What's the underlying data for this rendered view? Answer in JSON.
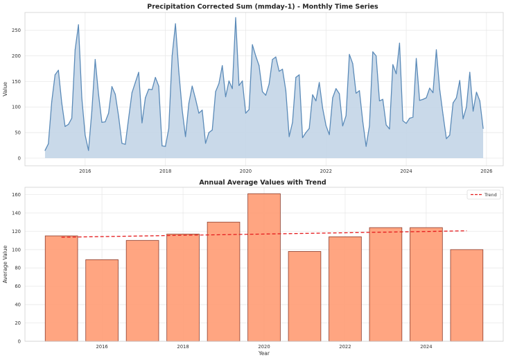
{
  "chart_data": [
    {
      "type": "area",
      "title": "Precipitation Corrected Sum (mmday-1) - Monthly Time Series",
      "xlabel": "",
      "ylabel": "Value",
      "x_start": "2015-01",
      "x_end": "2025-12",
      "x_ticks": [
        "2016",
        "2018",
        "2020",
        "2022",
        "2024",
        "2026"
      ],
      "y_ticks": [
        "0",
        "50",
        "100",
        "150",
        "200",
        "250"
      ],
      "ylim": [
        -15,
        285
      ],
      "grid": true,
      "fill_color": "#c6d7e8",
      "line_color": "#5a8ab8",
      "values": [
        15,
        28,
        110,
        163,
        172,
        108,
        62,
        66,
        78,
        212,
        261,
        118,
        45,
        15,
        92,
        193,
        125,
        70,
        71,
        88,
        140,
        125,
        82,
        29,
        27,
        78,
        128,
        148,
        168,
        69,
        118,
        135,
        134,
        158,
        141,
        24,
        23,
        58,
        200,
        263,
        170,
        95,
        42,
        107,
        141,
        116,
        88,
        94,
        29,
        50,
        55,
        130,
        146,
        181,
        120,
        151,
        136,
        275,
        142,
        151,
        88,
        95,
        222,
        200,
        181,
        130,
        123,
        145,
        193,
        198,
        170,
        174,
        132,
        42,
        70,
        158,
        163,
        40,
        50,
        58,
        124,
        112,
        148,
        98,
        64,
        46,
        118,
        136,
        126,
        63,
        83,
        203,
        185,
        127,
        132,
        72,
        23,
        63,
        208,
        200,
        112,
        115,
        65,
        57,
        183,
        165,
        225,
        73,
        68,
        78,
        80,
        195,
        113,
        115,
        118,
        137,
        128,
        212,
        135,
        85,
        38,
        45,
        108,
        118,
        152,
        77,
        100,
        168,
        92,
        129,
        112,
        58
      ]
    },
    {
      "type": "bar",
      "title": "Annual Average Values with Trend",
      "xlabel": "Year",
      "ylabel": "Average Value",
      "categories": [
        "2015",
        "2016",
        "2017",
        "2018",
        "2019",
        "2020",
        "2021",
        "2022",
        "2023",
        "2024",
        "2025"
      ],
      "values": [
        115,
        89,
        110,
        117,
        130,
        161,
        98,
        114,
        124,
        124,
        100
      ],
      "x_ticks": [
        "2016",
        "2018",
        "2020",
        "2022",
        "2024"
      ],
      "y_ticks": [
        "0",
        "20",
        "40",
        "60",
        "80",
        "100",
        "120",
        "140",
        "160"
      ],
      "ylim": [
        0,
        168
      ],
      "grid": true,
      "bar_color": "#ffa07a",
      "bar_edge": "#8b3a2a",
      "trend": {
        "name": "Trend",
        "start": 113.5,
        "end": 120.5,
        "color": "#e41a1c",
        "style": "dashed"
      },
      "legend": "top-right"
    }
  ]
}
